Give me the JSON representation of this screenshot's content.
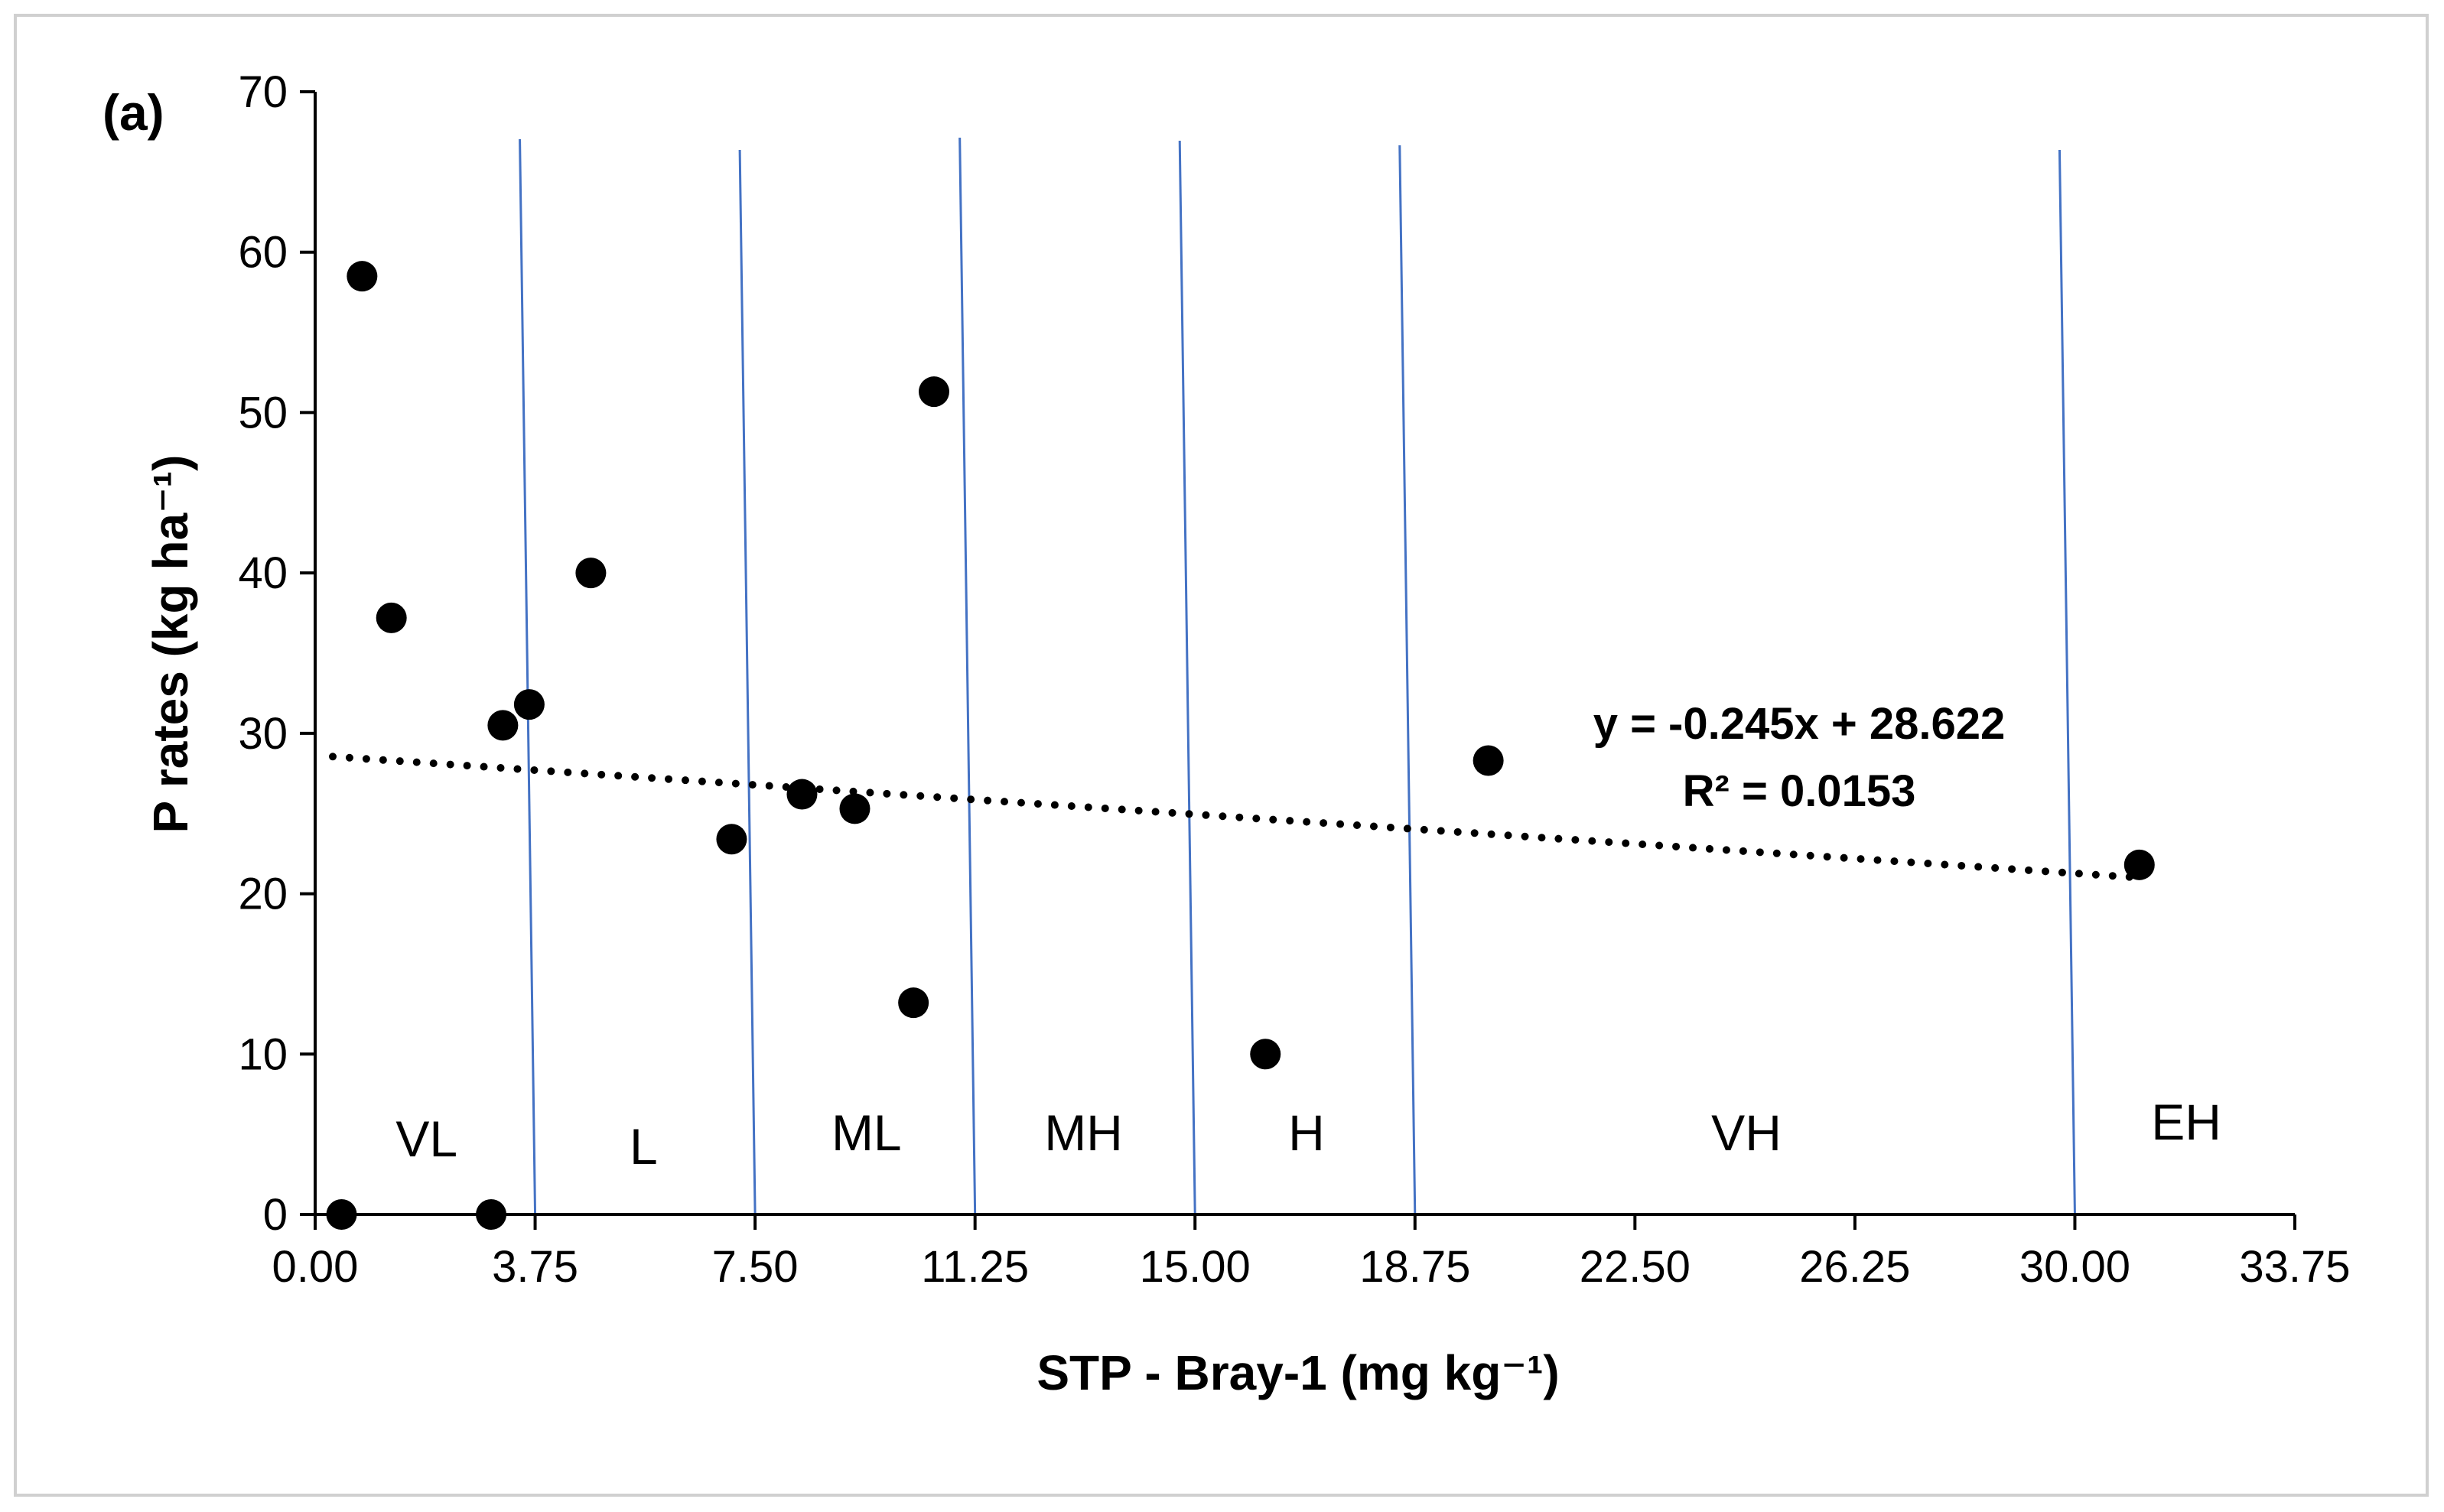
{
  "chart_data": {
    "type": "scatter",
    "panel_label": "(a)",
    "xlabel": "STP - Bray-1 (mg kg⁻¹)",
    "ylabel": "P rates (kg ha⁻¹)",
    "xlim": [
      0,
      33.75
    ],
    "ylim": [
      0,
      70
    ],
    "x_ticks": [
      0,
      3.75,
      7.5,
      11.25,
      15,
      18.75,
      22.5,
      26.25,
      30,
      33.75
    ],
    "x_tick_labels": [
      "0.00",
      "3.75",
      "7.50",
      "11.25",
      "15.00",
      "18.75",
      "22.50",
      "26.25",
      "30.00",
      "33.75"
    ],
    "y_ticks": [
      0,
      10,
      20,
      30,
      40,
      50,
      60,
      70
    ],
    "y_tick_labels": [
      "0",
      "10",
      "20",
      "30",
      "40",
      "50",
      "60",
      "70"
    ],
    "series": [
      {
        "name": "P rates",
        "points": [
          {
            "x": 0.45,
            "y": 0.0
          },
          {
            "x": 0.8,
            "y": 58.5
          },
          {
            "x": 1.3,
            "y": 37.2
          },
          {
            "x": 3.0,
            "y": 0.0
          },
          {
            "x": 3.2,
            "y": 30.5
          },
          {
            "x": 3.65,
            "y": 31.8
          },
          {
            "x": 4.7,
            "y": 40.0
          },
          {
            "x": 7.1,
            "y": 23.4
          },
          {
            "x": 8.3,
            "y": 26.2
          },
          {
            "x": 9.2,
            "y": 25.3
          },
          {
            "x": 10.2,
            "y": 13.2
          },
          {
            "x": 10.55,
            "y": 51.3
          },
          {
            "x": 16.2,
            "y": 10.0
          },
          {
            "x": 20.0,
            "y": 28.3
          },
          {
            "x": 31.1,
            "y": 21.8
          }
        ]
      }
    ],
    "trendline": {
      "type": "linear",
      "style": "dotted",
      "slope": -0.245,
      "intercept": 28.622,
      "x_range": [
        0.3,
        31.0
      ],
      "equation": "y = -0.245x + 28.622",
      "r_squared": "R² = 0.0153"
    },
    "zone_boundaries": [
      3.75,
      7.5,
      11.25,
      15,
      18.75,
      30
    ],
    "zones": [
      {
        "label": "VL",
        "x": 1.9
      },
      {
        "label": "L",
        "x": 5.6
      },
      {
        "label": "ML",
        "x": 9.4
      },
      {
        "label": "MH",
        "x": 13.1
      },
      {
        "label": "H",
        "x": 16.9
      },
      {
        "label": "VH",
        "x": 24.4
      },
      {
        "label": "EH",
        "x": 31.9
      }
    ],
    "colors": {
      "points": "#000000",
      "boundary_lines": "#4472c4",
      "axis": "#000000",
      "trendline": "#000000"
    }
  }
}
